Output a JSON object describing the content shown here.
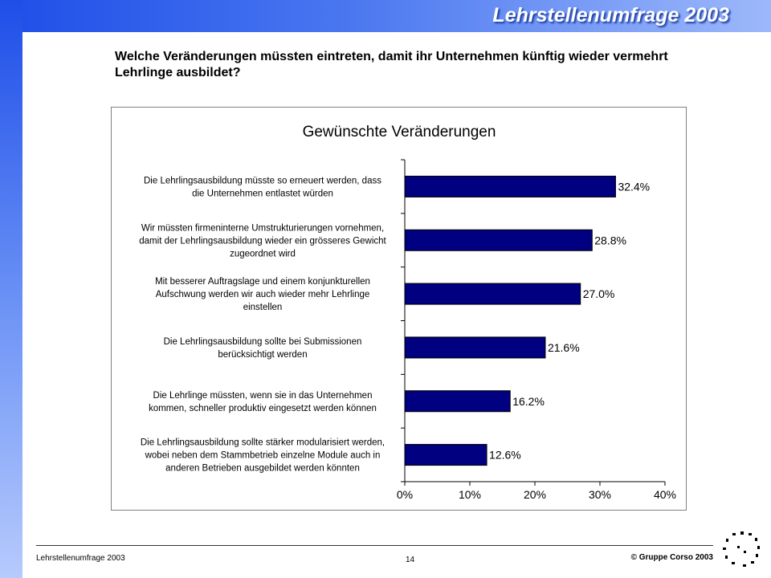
{
  "header": {
    "title": "Lehrstellenumfrage 2003"
  },
  "question": "Welche Veränderungen müssten eintreten, damit ihr Unternehmen künftig wieder vermehrt Lehrlinge ausbildet?",
  "footer": {
    "left": "Lehrstellenumfrage 2003",
    "page": "14",
    "copyright": "© Gruppe Corso 2003"
  },
  "colors": {
    "bar": "#000080",
    "accent": "#1e4ee8"
  },
  "chart_data": {
    "type": "bar",
    "orientation": "horizontal",
    "title": "Gewünschte Veränderungen",
    "categories": [
      [
        "Die Lehrlingsausbildung müsste so erneuert werden, dass",
        "die Unternehmen entlastet würden"
      ],
      [
        "Wir müssten firmeninterne Umstrukturierungen vornehmen,",
        "damit der Lehrlingsausbildung wieder ein grösseres Gewicht",
        "zugeordnet wird"
      ],
      [
        "Mit besserer Auftragslage und einem konjunkturellen",
        "Aufschwung werden wir auch wieder mehr Lehrlinge",
        "einstellen"
      ],
      [
        "Die Lehrlingsausbildung sollte bei Submissionen",
        "berücksichtigt werden"
      ],
      [
        "Die Lehrlinge müssten, wenn sie in das Unternehmen",
        "kommen, schneller produktiv eingesetzt werden können"
      ],
      [
        "Die Lehrlingsausbildung sollte stärker modularisiert werden,",
        "wobei neben dem Stammbetrieb einzelne Module auch in",
        "anderen Betrieben ausgebildet werden könnten"
      ]
    ],
    "values": [
      32.4,
      28.8,
      27.0,
      21.6,
      16.2,
      12.6
    ],
    "value_labels": [
      "32.4%",
      "28.8%",
      "27.0%",
      "21.6%",
      "16.2%",
      "12.6%"
    ],
    "xlim": [
      0,
      40
    ],
    "xticks": [
      "0%",
      "10%",
      "20%",
      "30%",
      "40%"
    ],
    "grid": false,
    "legend": false
  }
}
